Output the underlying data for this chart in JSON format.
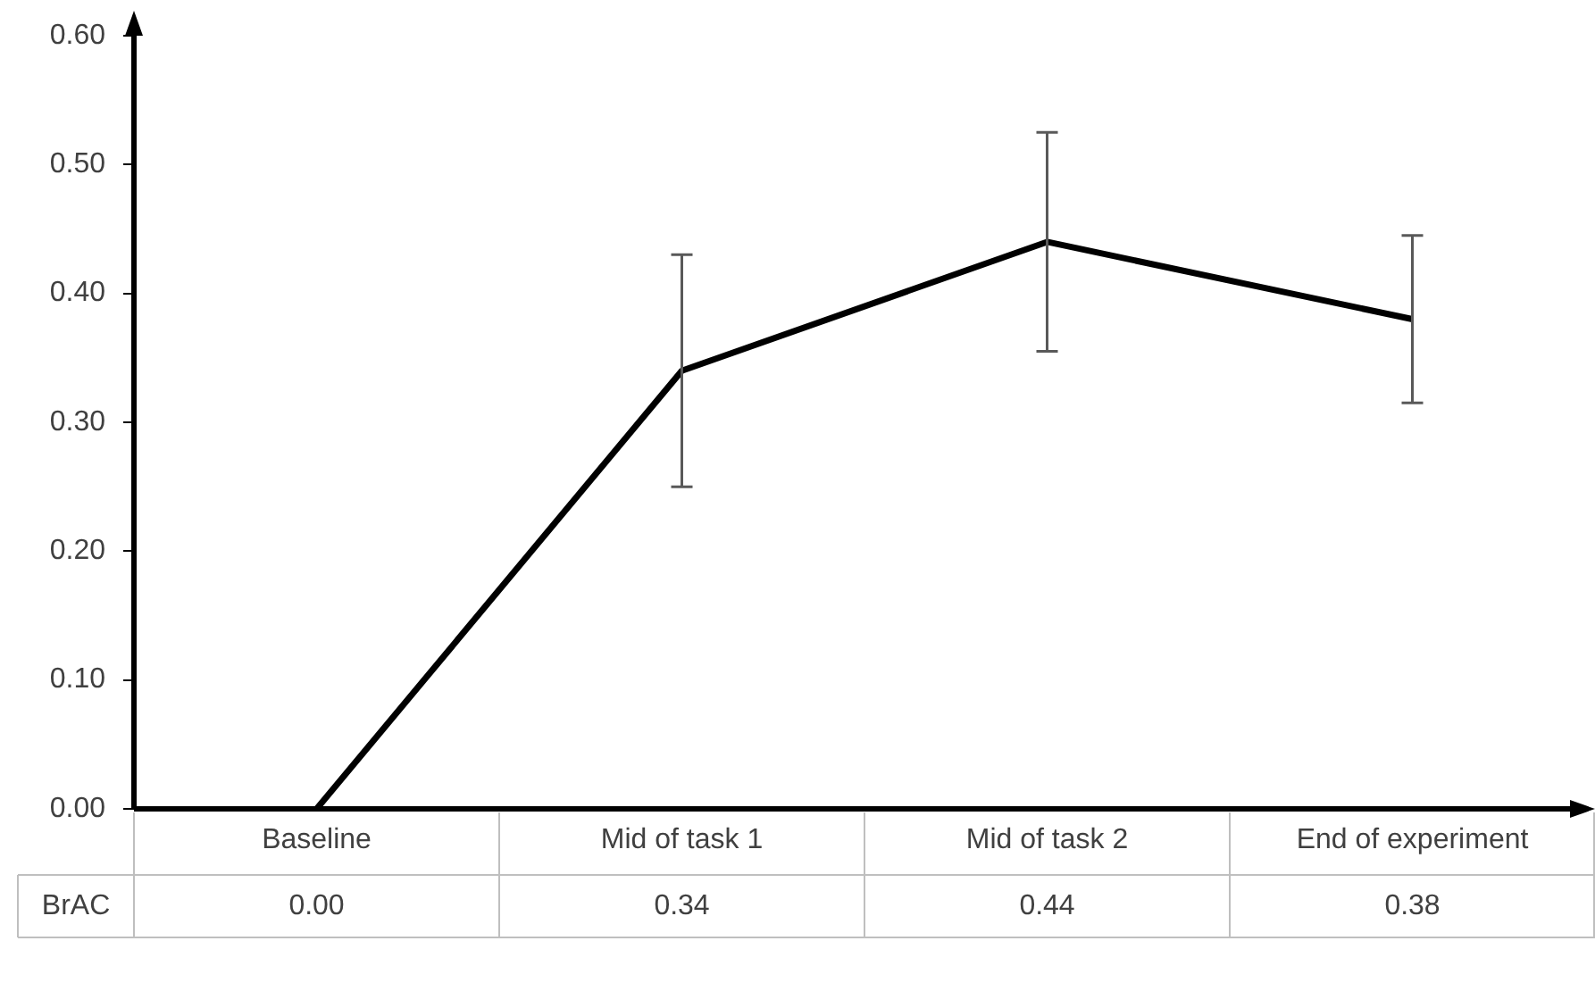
{
  "chart_data": {
    "type": "line",
    "categories": [
      "Baseline",
      "Mid of task 1",
      "Mid of task 2",
      "End of experiment"
    ],
    "series": [
      {
        "name": "BrAC",
        "color": "#000000",
        "values": [
          0.0,
          0.34,
          0.44,
          0.38
        ],
        "errors": [
          null,
          0.09,
          0.085,
          0.065
        ],
        "value_labels": [
          "0.00",
          "0.34",
          "0.44",
          "0.38"
        ]
      }
    ],
    "ylim": [
      0,
      0.6
    ],
    "yticks": [
      {
        "value": 0,
        "label": "0.00"
      },
      {
        "value": 0.1,
        "label": "0.10"
      },
      {
        "value": 0.2,
        "label": "0.20"
      },
      {
        "value": 0.3,
        "label": "0.30"
      },
      {
        "value": 0.4,
        "label": "0.40"
      },
      {
        "value": 0.5,
        "label": "0.50"
      },
      {
        "value": 0.6,
        "label": "0.60"
      }
    ],
    "grid": false,
    "legend": false,
    "marker": "none",
    "line_style": "solid"
  }
}
